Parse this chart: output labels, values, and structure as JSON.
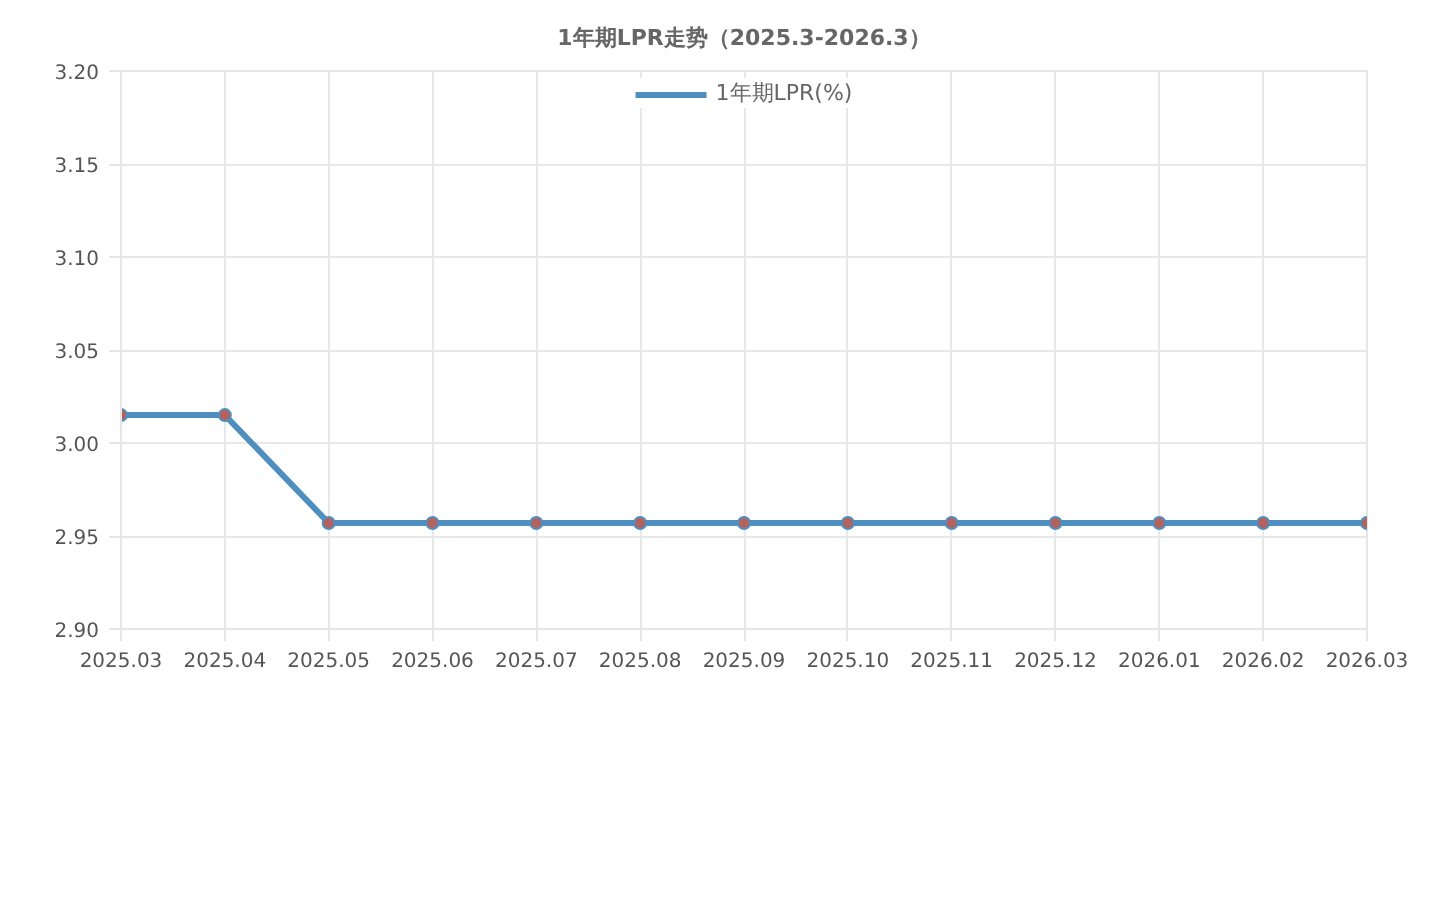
{
  "chart_data": {
    "type": "line",
    "title": "1年期LPR走势（2025.3-2026.3）",
    "categories": [
      "2025.03",
      "2025.04",
      "2025.05",
      "2025.06",
      "2025.07",
      "2025.08",
      "2025.09",
      "2025.10",
      "2025.11",
      "2025.12",
      "2026.01",
      "2026.02",
      "2026.03"
    ],
    "series": [
      {
        "name": "1年期LPR(%)",
        "color": "#4f8fc0",
        "values": [
          3.015,
          3.015,
          2.957,
          2.957,
          2.957,
          2.957,
          2.957,
          2.957,
          2.957,
          2.957,
          2.957,
          2.957,
          2.957
        ]
      }
    ],
    "ylim": [
      2.9,
      3.2
    ],
    "yticks": [
      {
        "value": 2.9,
        "label": "2.90"
      },
      {
        "value": 2.95,
        "label": "2.95"
      },
      {
        "value": 3.0,
        "label": "3.00"
      },
      {
        "value": 3.05,
        "label": "3.05"
      },
      {
        "value": 3.1,
        "label": "3.10"
      },
      {
        "value": 3.15,
        "label": "3.15"
      },
      {
        "value": 3.2,
        "label": "3.20"
      }
    ],
    "grid": true,
    "legend": "top",
    "marker": "circle",
    "line_style": "solid"
  }
}
